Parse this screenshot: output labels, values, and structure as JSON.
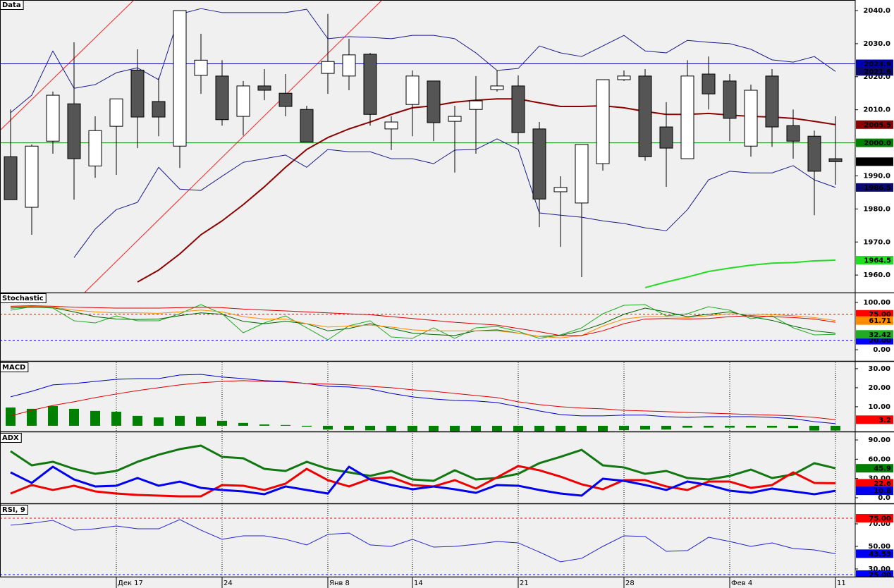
{
  "chart_data": [
    {
      "type": "candlestick",
      "title": "Data",
      "categories": [
        null,
        null,
        null,
        null,
        null,
        "Дек 17",
        null,
        null,
        null,
        null,
        "24",
        null,
        null,
        null,
        null,
        "Янв 8",
        null,
        null,
        null,
        "14",
        null,
        null,
        null,
        null,
        "21",
        null,
        null,
        null,
        null,
        "28",
        null,
        null,
        null,
        null,
        "Фев 4",
        null,
        null,
        null,
        null,
        "11"
      ],
      "open": [
        1995.8,
        1980.5,
        2000.5,
        2011.8,
        1993.0,
        2005.0,
        2022.0,
        2012.5,
        1999.0,
        2020.4,
        2020.2,
        2008.0,
        2017.2,
        2015.0,
        2010.1,
        2021.0,
        2020.2,
        2026.8,
        2004.2,
        2011.6,
        2018.7,
        2006.5,
        2010.1,
        2016.1,
        2017.2,
        2004.2,
        1985.2,
        1981.8,
        1993.7,
        2019.1,
        2020.2,
        2004.8,
        1995.2,
        2020.8,
        2018.7,
        1999.0,
        2020.2,
        2005.2,
        2002.0,
        1995.2
      ],
      "high": [
        2010.1,
        1999.5,
        2015.5,
        2030.4,
        2008.0,
        2013.3,
        2028.3,
        2019.7,
        2040.0,
        2033.0,
        2025.0,
        2018.7,
        2022.3,
        2020.8,
        2011.2,
        2039.0,
        2031.5,
        2027.2,
        2008.0,
        2021.9,
        2018.7,
        2011.2,
        2020.2,
        2021.9,
        2020.4,
        2006.3,
        1989.9,
        1999.5,
        2019.1,
        2021.9,
        2022.3,
        2012.3,
        2025.0,
        2026.1,
        2020.8,
        2017.6,
        2022.3,
        2010.1,
        2003.7,
        2008.0
      ],
      "low": [
        1982.8,
        1972.2,
        1996.7,
        1982.8,
        1989.4,
        1990.3,
        1998.4,
        2002.0,
        1992.4,
        2014.8,
        2005.2,
        2002.2,
        2012.9,
        2008.0,
        2000.3,
        2014.8,
        2015.9,
        2005.2,
        1997.8,
        2002.0,
        2000.5,
        1991.0,
        1996.7,
        2015.5,
        1999.5,
        1974.5,
        1968.5,
        1959.4,
        1991.6,
        2018.7,
        1994.6,
        1986.7,
        1995.2,
        2010.1,
        2000.5,
        1995.8,
        1998.8,
        1995.2,
        1978.1,
        1987.3
      ],
      "close": [
        1982.8,
        1999.0,
        2014.4,
        1995.2,
        2003.7,
        2013.3,
        2007.8,
        2007.8,
        2040.0,
        2025.0,
        2007.0,
        2017.2,
        2015.9,
        2011.0,
        2000.3,
        2024.6,
        2026.6,
        2008.6,
        2006.3,
        2020.2,
        2006.1,
        2008.0,
        2012.7,
        2017.2,
        2003.1,
        1983.0,
        1986.5,
        1999.5,
        2019.1,
        2020.2,
        1995.8,
        1998.4,
        2020.2,
        2014.8,
        2007.4,
        2015.9,
        2004.8,
        2000.5,
        1991.4,
        1994.3
      ],
      "up_color": "#ffffff",
      "down_color": "#555555",
      "last_color": "#000000",
      "series": [
        {
          "color": "#1a1a8c",
          "width": 1,
          "last_color": "#0a0a6e",
          "values": [
            2009.1,
            2014.4,
            2027.8,
            2016.5,
            2017.6,
            2021.2,
            2022.7,
            2019.1,
            2038.9,
            2040.6,
            2039.4,
            2039.4,
            2039.4,
            2039.4,
            2040.4,
            2031.5,
            2032.1,
            2031.9,
            2031.5,
            2032.5,
            2032.5,
            2031.5,
            2027.2,
            2021.9,
            2022.5,
            2029.3,
            2027.2,
            2026.1,
            2029.3,
            2032.5,
            2027.8,
            2027.2,
            2031.0,
            2030.4,
            2030.0,
            2028.3,
            2025.1,
            2024.4,
            2026.1,
            2021.6
          ]
        },
        {
          "color": "#8b0000",
          "width": 2,
          "last_color": "#8b0000",
          "values": [
            null,
            null,
            null,
            null,
            null,
            null,
            1957.9,
            1961.5,
            1966.4,
            1972.2,
            1976.4,
            1981.3,
            1986.7,
            1992.6,
            1998.0,
            2001.6,
            2004.2,
            2006.3,
            2008.6,
            2010.6,
            2011.2,
            2012.3,
            2012.9,
            2013.3,
            2013.3,
            2012.1,
            2011.0,
            2011.0,
            2011.2,
            2010.6,
            2009.5,
            2008.6,
            2008.6,
            2008.9,
            2008.4,
            2008.0,
            2007.8,
            2007.4,
            2006.5,
            2005.5
          ]
        },
        {
          "color": "#1a1a8c",
          "width": 1,
          "last_color": "#0a0a6e",
          "values": [
            null,
            null,
            null,
            1965.3,
            1973.9,
            1979.8,
            1982.0,
            1992.6,
            1986.0,
            1985.6,
            1989.9,
            1994.1,
            1995.2,
            1996.3,
            1992.6,
            1998.0,
            1997.3,
            1997.3,
            1995.2,
            1995.2,
            1993.7,
            1997.8,
            1998.0,
            2001.2,
            1998.0,
            1978.8,
            1978.1,
            1977.5,
            1976.4,
            1975.6,
            1974.3,
            1973.4,
            1979.8,
            1988.8,
            1991.4,
            1990.9,
            1990.9,
            1993.1,
            1988.8,
            1986.5
          ]
        },
        {
          "color": "#22dd22",
          "width": 2,
          "last_color": "#22dd22",
          "values": [
            null,
            null,
            null,
            null,
            null,
            null,
            null,
            null,
            null,
            null,
            null,
            null,
            null,
            null,
            null,
            null,
            null,
            null,
            null,
            null,
            null,
            null,
            null,
            null,
            null,
            null,
            null,
            null,
            null,
            null,
            1956.2,
            1957.9,
            1959.4,
            1961.1,
            1962.1,
            1963.0,
            1963.6,
            1963.8,
            1964.3,
            1964.5
          ]
        }
      ],
      "levels": [
        {
          "value": 2023.9,
          "color": "#0000aa"
        },
        {
          "value": 2000,
          "label": "2000.0",
          "color": "#008000"
        }
      ],
      "ylim": [
        1954.7,
        2043.2
      ],
      "yticks": [
        {
          "value": 2040,
          "label": "2040.0"
        },
        {
          "value": 2030,
          "label": "2030.0"
        },
        {
          "value": 2020,
          "label": "2020.0"
        },
        {
          "value": 2010,
          "label": "2010.0"
        },
        {
          "value": 1990,
          "label": "1990.0"
        },
        {
          "value": 1980,
          "label": "1980.0"
        },
        {
          "value": 1970,
          "label": "1970.0"
        },
        {
          "value": 1960,
          "label": "1960.0"
        }
      ]
    },
    {
      "type": "line",
      "title": "Stochastic",
      "series": [
        {
          "color": "#22aa22",
          "width": 1,
          "last_color": "#22aa22",
          "values": [
            83.6,
            91.0,
            88.1,
            61.2,
            56.7,
            71.6,
            61.2,
            61.2,
            76.1,
            95.5,
            76.1,
            35.8,
            56.7,
            71.6,
            46.3,
            20.9,
            50.7,
            61.2,
            26.9,
            23.9,
            46.3,
            23.9,
            46.3,
            49.3,
            38.8,
            23.9,
            31.3,
            46.3,
            76.1,
            94.0,
            95.5,
            71.6,
            76.1,
            91.0,
            83.6,
            65.7,
            71.6,
            46.3,
            31.3,
            32.42
          ]
        },
        {
          "color": "#006400",
          "width": 1,
          "values": [
            88,
            90,
            89,
            80,
            70,
            65,
            64,
            65,
            72,
            78,
            75,
            60,
            55,
            60,
            55,
            40,
            45,
            55,
            45,
            35,
            32,
            30,
            40,
            42,
            35,
            28,
            30,
            40,
            55,
            75,
            88,
            80,
            70,
            75,
            80,
            70,
            62,
            50,
            40,
            35
          ]
        },
        {
          "color": "#ff8c00",
          "width": 1,
          "last_color": "#ff8c00",
          "values": [
            90,
            92,
            90,
            84,
            80,
            78,
            78,
            77,
            80,
            84,
            80,
            70,
            65,
            65,
            55,
            48,
            50,
            52,
            48,
            42,
            40,
            40,
            40,
            40,
            35,
            28,
            25,
            30,
            50,
            65,
            70,
            70,
            68,
            72,
            76,
            75,
            74,
            72,
            68,
            61.71
          ]
        },
        {
          "color": "#dd0000",
          "width": 1,
          "values": [
            92,
            93,
            92,
            90,
            89,
            88,
            88,
            88,
            89,
            90,
            89,
            86,
            84,
            82,
            80,
            78,
            76,
            74,
            70,
            66,
            62,
            58,
            55,
            52,
            45,
            38,
            30,
            30,
            40,
            55,
            65,
            66,
            65,
            66,
            70,
            72,
            70,
            68,
            65,
            58
          ]
        }
      ],
      "levels": [
        {
          "value": 75,
          "label": "75.00",
          "color": "#ff0000"
        },
        {
          "value": 20,
          "label": "20.00",
          "color": "#0000ff"
        }
      ],
      "ylim": [
        -23.9,
        119.4
      ],
      "yticks": [
        {
          "value": 100,
          "label": "100.00"
        },
        {
          "value": 0,
          "label": "0.00"
        }
      ]
    },
    {
      "type": "line",
      "title": "MACD",
      "series": [
        {
          "type": "bar",
          "color": "#008000",
          "values": [
            9.6,
            8.9,
            10.4,
            8.9,
            7.8,
            7.4,
            5.2,
            4.4,
            5.2,
            4.8,
            2.6,
            1.5,
            0.7,
            0.4,
            -0.5,
            -2.0,
            -2.2,
            -2.4,
            -2.8,
            -2.8,
            -2.9,
            -2.9,
            -2.9,
            -2.9,
            -2.9,
            -2.9,
            -2.9,
            -2.9,
            -2.9,
            -2.3,
            -2.0,
            -2.0,
            -1.0,
            -1.0,
            -1.0,
            -1.0,
            -1.0,
            -1.2,
            -2.5,
            -2.5
          ]
        },
        {
          "color": "#0000cc",
          "width": 1,
          "values": [
            15.2,
            18.1,
            21.5,
            22.2,
            23.3,
            24.4,
            24.8,
            24.8,
            26.7,
            27.0,
            25.6,
            24.8,
            23.7,
            23.3,
            22.2,
            20.7,
            20.4,
            19.3,
            17.0,
            15.2,
            14.1,
            13.3,
            13.0,
            12.2,
            10.0,
            7.8,
            5.9,
            5.2,
            5.2,
            5.6,
            5.6,
            4.8,
            4.4,
            4.8,
            4.8,
            4.8,
            4.4,
            3.7,
            2.2,
            1.1
          ]
        },
        {
          "color": "#dd0000",
          "width": 1,
          "last_color": "#ff0000",
          "values": [
            5.2,
            8.1,
            10.7,
            12.6,
            14.8,
            16.7,
            18.5,
            20.0,
            21.5,
            22.6,
            23.3,
            23.7,
            23.3,
            23.0,
            22.2,
            21.9,
            21.5,
            20.7,
            20.0,
            18.9,
            18.1,
            17.0,
            15.9,
            14.8,
            12.6,
            11.1,
            10.0,
            9.3,
            8.9,
            8.1,
            7.8,
            7.4,
            7.0,
            6.7,
            6.3,
            5.9,
            5.6,
            5.2,
            4.4,
            3.2
          ]
        }
      ],
      "ylim": [
        -3.0,
        33.3
      ],
      "yticks": [
        {
          "value": 30,
          "label": "30.00"
        },
        {
          "value": 20,
          "label": "20.00"
        },
        {
          "value": 10,
          "label": "10.00"
        }
      ]
    },
    {
      "type": "line",
      "title": "ADX",
      "series": [
        {
          "color": "#117711",
          "width": 3,
          "last_color": "#008000",
          "values": [
            72.4,
            50.5,
            56.0,
            45.0,
            37.3,
            41.7,
            56.0,
            67.0,
            75.7,
            81.2,
            63.7,
            61.5,
            45.0,
            41.7,
            56.0,
            45.0,
            39.5,
            34.0,
            41.7,
            28.5,
            26.3,
            42.8,
            28.5,
            30.7,
            37.3,
            53.8,
            63.7,
            74.6,
            50.5,
            47.2,
            37.3,
            41.7,
            30.7,
            28.5,
            34.0,
            43.9,
            30.7,
            36.2,
            53.8,
            45.9
          ]
        },
        {
          "color": "#ee0000",
          "width": 3,
          "last_color": "#ff0000",
          "values": [
            6.6,
            19.8,
            12.1,
            18.7,
            9.9,
            6.6,
            4.4,
            3.3,
            2.2,
            2.2,
            19.8,
            18.7,
            12.1,
            22.0,
            45.0,
            27.4,
            17.6,
            29.6,
            31.8,
            19.8,
            17.6,
            27.4,
            14.3,
            31.8,
            49.4,
            42.8,
            32.9,
            20.9,
            13.2,
            27.4,
            27.4,
            17.6,
            12.1,
            25.2,
            25.2,
            15.4,
            19.8,
            39.5,
            23.1,
            22.6
          ]
        },
        {
          "color": "#0000ee",
          "width": 3,
          "last_color": "#0000ee",
          "values": [
            39.5,
            23.1,
            48.3,
            28.5,
            17.6,
            18.7,
            30.7,
            18.7,
            25.2,
            15.4,
            12.1,
            9.9,
            5.5,
            17.6,
            12.1,
            6.6,
            48.3,
            28.5,
            19.8,
            13.2,
            17.6,
            13.2,
            7.7,
            19.8,
            18.7,
            12.1,
            6.6,
            3.3,
            29.6,
            26.3,
            19.8,
            12.1,
            25.2,
            19.8,
            11.0,
            7.7,
            14.3,
            9.9,
            5.5,
            10.8
          ]
        }
      ],
      "ylim": [
        -8.8,
        101
      ],
      "yticks": [
        {
          "value": 90,
          "label": "90.00"
        },
        {
          "value": 60,
          "label": "60.00"
        },
        {
          "value": 30,
          "label": "30.00"
        },
        {
          "value": 0,
          "label": "0.0"
        }
      ]
    },
    {
      "type": "line",
      "title": "RSI, 9",
      "series": [
        {
          "color": "#2222cc",
          "width": 1,
          "last_color": "#0000ee",
          "values": [
            68.8,
            70.6,
            73.1,
            64.4,
            65.6,
            68.1,
            65.6,
            65.6,
            73.8,
            64.4,
            56.3,
            59.4,
            59.4,
            56.3,
            51.3,
            60.6,
            61.9,
            51.3,
            50.0,
            56.3,
            49.4,
            50.0,
            51.9,
            54.4,
            53.1,
            45.0,
            36.3,
            39.4,
            50.0,
            59.4,
            58.8,
            45.6,
            46.3,
            58.1,
            54.4,
            50.0,
            53.1,
            48.1,
            46.9,
            43.53
          ]
        }
      ],
      "levels": [
        {
          "value": 75,
          "label": "75.00",
          "color": "#ff0000"
        },
        {
          "value": 25,
          "label": "25.00",
          "color": "#0000ff"
        }
      ],
      "ylim": [
        23.1,
        86.9
      ],
      "yticks": [
        {
          "value": 70,
          "label": "70.00"
        },
        {
          "value": 50,
          "label": "50.00"
        },
        {
          "value": 30,
          "label": "30.00"
        }
      ]
    }
  ]
}
